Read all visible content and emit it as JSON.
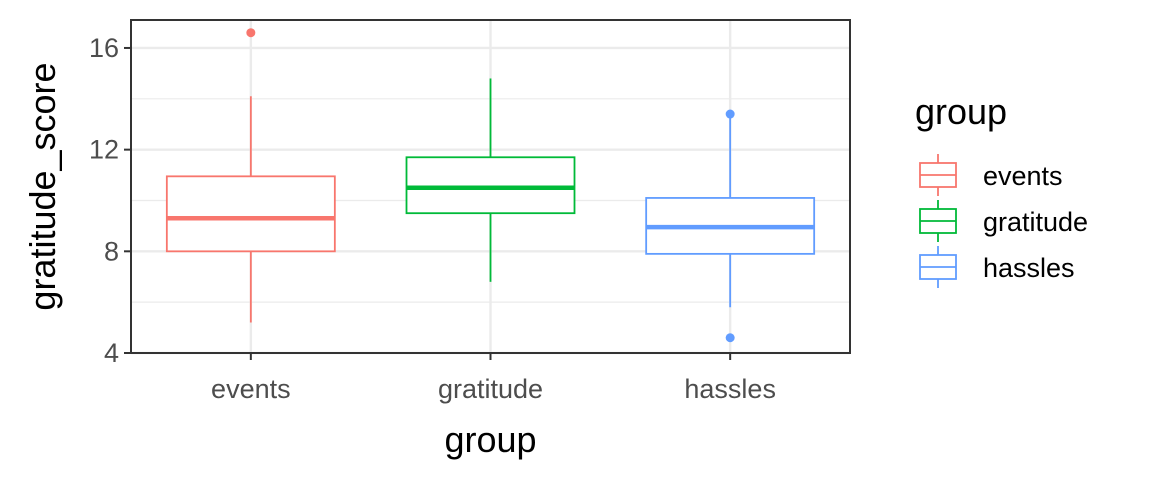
{
  "chart_data": {
    "type": "boxplot",
    "xlabel": "group",
    "ylabel": "gratitude_score",
    "ylim": [
      4,
      17.1
    ],
    "y_ticks": [
      4,
      8,
      12,
      16
    ],
    "y_minor_ticks": [
      6,
      10,
      14
    ],
    "grid": true,
    "legend": {
      "title": "group",
      "placement": "right"
    },
    "categories": [
      "events",
      "gratitude",
      "hassles"
    ],
    "colors": {
      "events": "#F8766D",
      "gratitude": "#00BA38",
      "hassles": "#619CFF"
    },
    "series": [
      {
        "name": "events",
        "whisker_low": 5.2,
        "q1": 8.0,
        "median": 9.3,
        "q3": 10.95,
        "whisker_high": 14.1,
        "outliers": [
          16.6
        ]
      },
      {
        "name": "gratitude",
        "whisker_low": 6.8,
        "q1": 9.5,
        "median": 10.5,
        "q3": 11.7,
        "whisker_high": 14.8,
        "outliers": []
      },
      {
        "name": "hassles",
        "whisker_low": 5.8,
        "q1": 7.9,
        "median": 8.95,
        "q3": 10.1,
        "whisker_high": 13.4,
        "outliers": [
          4.6,
          13.4
        ]
      }
    ]
  }
}
